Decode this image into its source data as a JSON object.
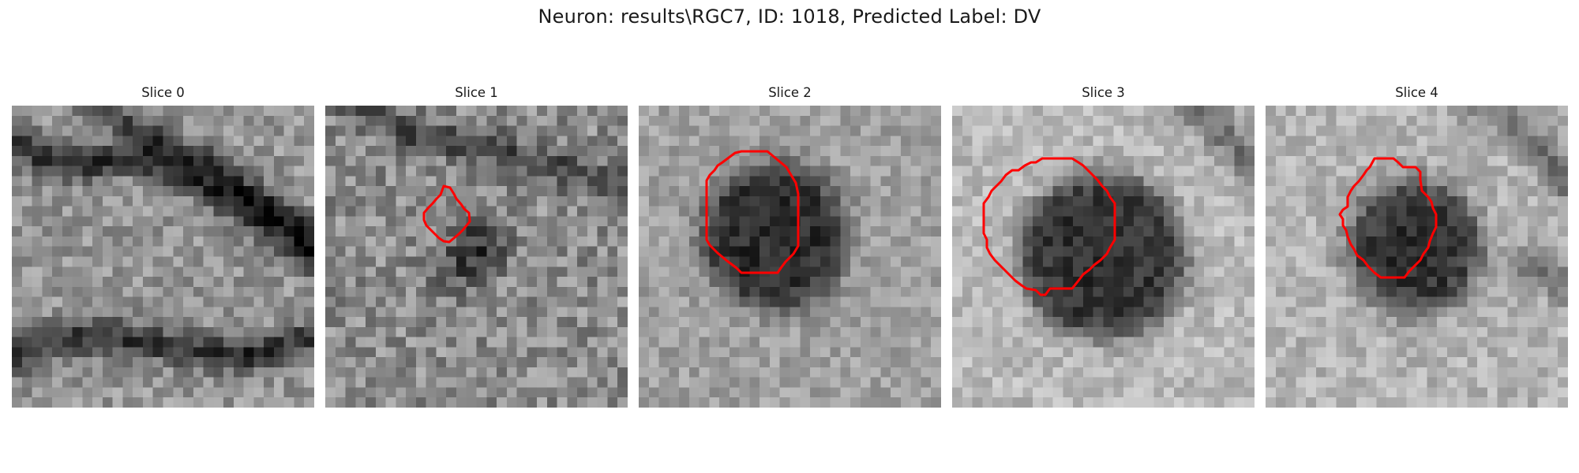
{
  "figure": {
    "title": "Neuron: results\\RGC7, ID: 1018, Predicted Label: DV"
  },
  "contour_color": "#ff0000",
  "colormap": "grayscale",
  "panels": [
    {
      "title": "Slice 0",
      "has_contour": false
    },
    {
      "title": "Slice 1",
      "has_contour": true
    },
    {
      "title": "Slice 2",
      "has_contour": true
    },
    {
      "title": "Slice 3",
      "has_contour": true
    },
    {
      "title": "Slice 4",
      "has_contour": true
    }
  ]
}
